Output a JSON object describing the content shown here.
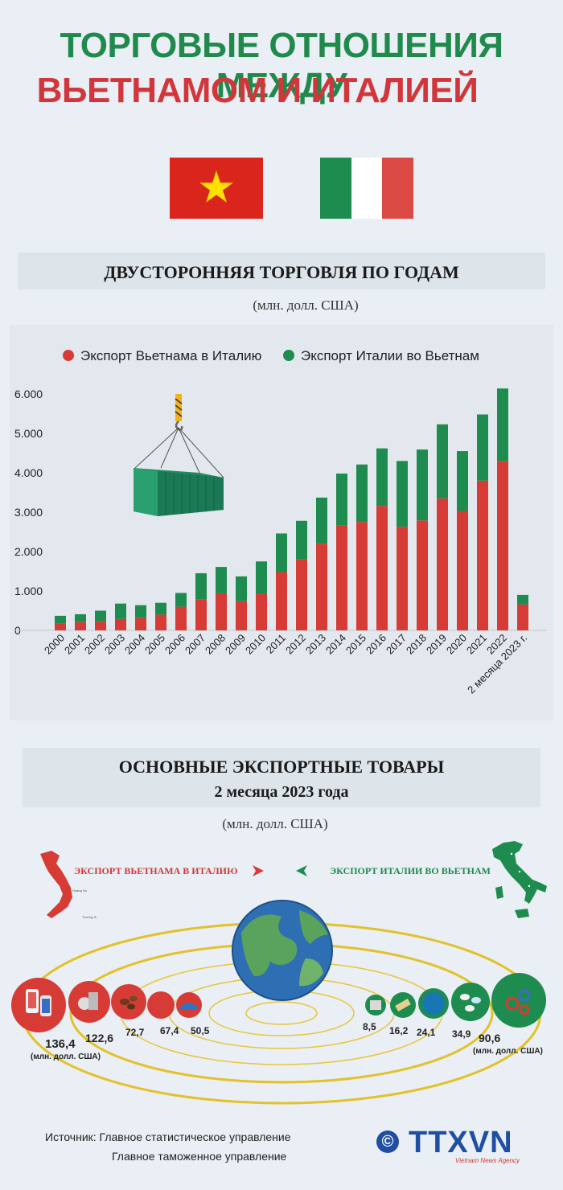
{
  "title": {
    "line1": "ТОРГОВЫЕ ОТНОШЕНИЯ МЕЖДУ",
    "line2": "ВЬЕТНАМОМ И ИТАЛИЕЙ"
  },
  "colors": {
    "green": "#1f8a4c",
    "red": "#d1373a",
    "bar_red": "#d63b36",
    "bar_green": "#1e8c4e"
  },
  "section1": {
    "title": "ДВУСТОРОННЯЯ ТОРГОВЛЯ ПО ГОДАМ",
    "units": "(млн. долл. США)"
  },
  "chart_data": {
    "type": "bar",
    "stacked": true,
    "categories": [
      "2000",
      "2001",
      "2002",
      "2003",
      "2004",
      "2005",
      "2006",
      "2007",
      "2008",
      "2009",
      "2010",
      "2011",
      "2012",
      "2013",
      "2014",
      "2015",
      "2016",
      "2017",
      "2018",
      "2019",
      "2020",
      "2021",
      "2022",
      "2 месяца 2023 г."
    ],
    "series": [
      {
        "name": "Экспорт Вьетнама в Италию",
        "color": "#d63b36",
        "values": [
          170,
          210,
          230,
          290,
          320,
          400,
          600,
          780,
          940,
          740,
          920,
          1480,
          1800,
          2200,
          2660,
          2750,
          3160,
          2630,
          2790,
          3350,
          3030,
          3800,
          4300,
          660
        ]
      },
      {
        "name": "Экспорт Италии во Вьетнам",
        "color": "#1e8c4e",
        "values": [
          200,
          200,
          270,
          390,
          320,
          300,
          350,
          670,
          670,
          630,
          830,
          980,
          980,
          1170,
          1320,
          1460,
          1460,
          1670,
          1800,
          1880,
          1520,
          1680,
          1840,
          240
        ]
      }
    ],
    "y_ticks": [
      "6.000",
      "5.000",
      "4.000",
      "3.000",
      "2.000",
      "1.000",
      "0"
    ],
    "ylim": [
      0,
      6000
    ],
    "legend_position": "top"
  },
  "section2": {
    "title": "ОСНОВНЫЕ ЭКСПОРТНЫЕ ТОВАРЫ",
    "subtitle": "2 месяца 2023 года",
    "units": "(млн. долл. США)",
    "label_vn": "ЭКСПОРТ ВЬЕТНАМА В ИТАЛИЮ",
    "label_it": "ЭКСПОРТ ИТАЛИИ ВО ВЬЕТНАМ",
    "vn_values": [
      "136,4",
      "122,6",
      "72,7",
      "67,4",
      "50,5"
    ],
    "vn_unit": "(млн. долл. США)",
    "it_values": [
      "8,5",
      "16,2",
      "24,1",
      "34,9",
      "90,6"
    ],
    "it_unit": "(млн. долл. США)"
  },
  "source": {
    "line1": "Источник: Главное статистическое управление",
    "line2": "Главное таможенное управление",
    "copyright": "©",
    "logo": "TTXVN",
    "logo_sub": "Vietnam News Agency"
  }
}
